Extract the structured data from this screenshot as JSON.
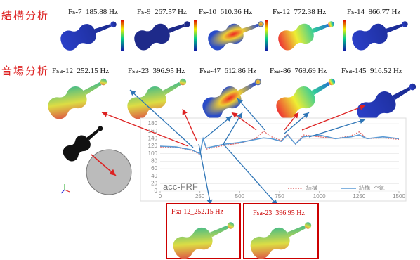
{
  "header": {
    "structural": "結構分析",
    "acoustic": "音場分析"
  },
  "structural_modes": [
    "Fs-7_185.88 Hz",
    "Fs-9_267.57 Hz",
    "Fs-10_610.36 Hz",
    "Fs-12_772.38 Hz",
    "Fs-14_866.77 Hz"
  ],
  "acoustic_modes": [
    "Fsa-12_252.15 Hz",
    "Fsa-23_396.95 Hz",
    "Fsa-47_612.86 Hz",
    "Fsa-86_769.69 Hz",
    "Fsa-145_916.52 Hz"
  ],
  "highlighted_modes": [
    "Fsa-12_252.15 Hz",
    "Fsa-23_396.95 Hz"
  ],
  "chart_data": {
    "type": "line",
    "title": "acc-FRF",
    "x": [
      0,
      100,
      200,
      250,
      270,
      290,
      400,
      500,
      600,
      650,
      700,
      760,
      800,
      850,
      900,
      1000,
      1100,
      1200,
      1250,
      1300,
      1400,
      1500
    ],
    "series": [
      {
        "name": "結構",
        "color": "#e06666",
        "dash": true,
        "values": [
          118,
          117,
          108,
          98,
          138,
          112,
          122,
          128,
          140,
          160,
          145,
          135,
          152,
          125,
          150,
          145,
          140,
          148,
          158,
          140,
          142,
          138
        ]
      },
      {
        "name": "結構+空氣",
        "color": "#5b9bd5",
        "dash": false,
        "values": [
          120,
          118,
          110,
          100,
          140,
          115,
          125,
          130,
          138,
          142,
          140,
          133,
          150,
          126,
          145,
          150,
          140,
          145,
          150,
          140,
          145,
          140
        ]
      }
    ],
    "xlim": [
      0,
      1500
    ],
    "xticks": [
      0,
      250,
      500,
      750,
      1000,
      1250,
      1500
    ],
    "ylim": [
      0,
      180
    ],
    "yticks": [
      0,
      20,
      40,
      60,
      80,
      100,
      120,
      140,
      160,
      180
    ],
    "grid": true
  }
}
